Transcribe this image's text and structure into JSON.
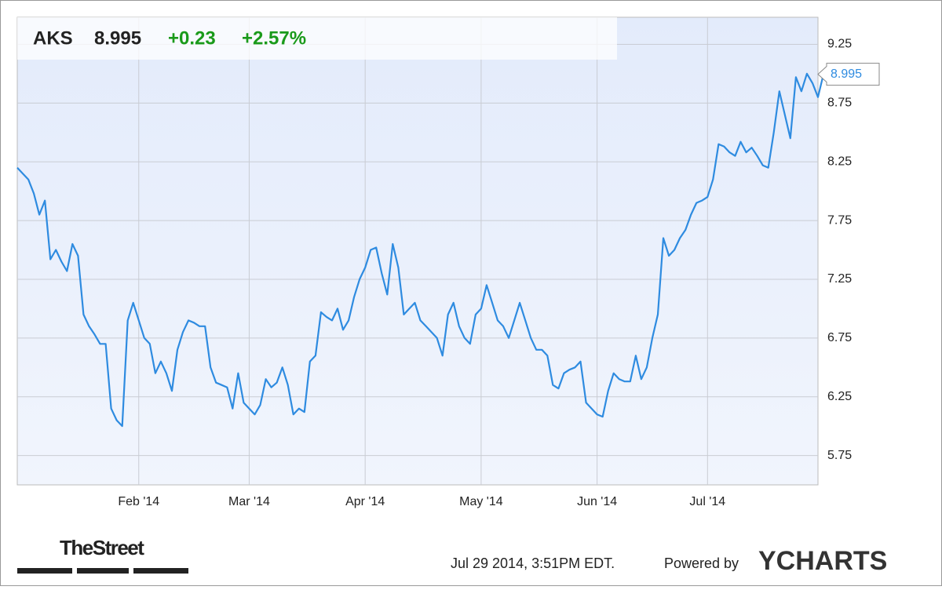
{
  "header": {
    "ticker": "AKS",
    "price": "8.995",
    "change": "+0.23",
    "change_percent": "+2.57%"
  },
  "footer": {
    "brand": "TheStreet",
    "timestamp": "Jul 29 2014, 3:51PM EDT.",
    "powered_by": "Powered by",
    "logo": "YCHARTS"
  },
  "chart_data": {
    "type": "line",
    "color": "#2e8be0",
    "grid": true,
    "values": [
      8.2,
      8.15,
      8.1,
      7.98,
      7.8,
      7.92,
      7.42,
      7.5,
      7.4,
      7.32,
      7.55,
      7.45,
      6.95,
      6.85,
      6.78,
      6.7,
      6.7,
      6.15,
      6.05,
      6.0,
      6.9,
      7.05,
      6.9,
      6.75,
      6.7,
      6.45,
      6.55,
      6.45,
      6.3,
      6.65,
      6.8,
      6.9,
      6.88,
      6.85,
      6.85,
      6.5,
      6.37,
      6.35,
      6.33,
      6.15,
      6.45,
      6.2,
      6.15,
      6.1,
      6.18,
      6.4,
      6.33,
      6.37,
      6.5,
      6.35,
      6.1,
      6.15,
      6.12,
      6.55,
      6.6,
      6.97,
      6.93,
      6.9,
      7.0,
      6.82,
      6.9,
      7.1,
      7.25,
      7.35,
      7.5,
      7.52,
      7.3,
      7.12,
      7.55,
      7.35,
      6.95,
      7.0,
      7.05,
      6.9,
      6.85,
      6.8,
      6.75,
      6.6,
      6.95,
      7.05,
      6.85,
      6.75,
      6.7,
      6.95,
      7.0,
      7.2,
      7.05,
      6.9,
      6.85,
      6.75,
      6.9,
      7.05,
      6.9,
      6.75,
      6.65,
      6.65,
      6.6,
      6.35,
      6.32,
      6.45,
      6.48,
      6.5,
      6.55,
      6.2,
      6.15,
      6.1,
      6.08,
      6.3,
      6.45,
      6.4,
      6.38,
      6.38,
      6.6,
      6.4,
      6.5,
      6.75,
      6.95,
      7.6,
      7.45,
      7.5,
      7.6,
      7.67,
      7.8,
      7.9,
      7.92,
      7.95,
      8.1,
      8.4,
      8.38,
      8.33,
      8.3,
      8.42,
      8.33,
      8.37,
      8.3,
      8.22,
      8.2,
      8.5,
      8.85,
      8.65,
      8.45,
      8.97,
      8.85,
      9.0,
      8.92,
      8.8,
      8.995
    ],
    "xlim": [
      0,
      145
    ],
    "xticks": [
      {
        "value": 22,
        "label": "Feb '14"
      },
      {
        "value": 42,
        "label": "Mar '14"
      },
      {
        "value": 63,
        "label": "Apr '14"
      },
      {
        "value": 84,
        "label": "May '14"
      },
      {
        "value": 105,
        "label": "Jun '14"
      },
      {
        "value": 125,
        "label": "Jul '14"
      }
    ],
    "ylim": [
      5.5,
      9.48
    ],
    "yticks": [
      5.75,
      6.25,
      6.75,
      7.25,
      7.75,
      8.25,
      8.75,
      9.25
    ]
  }
}
